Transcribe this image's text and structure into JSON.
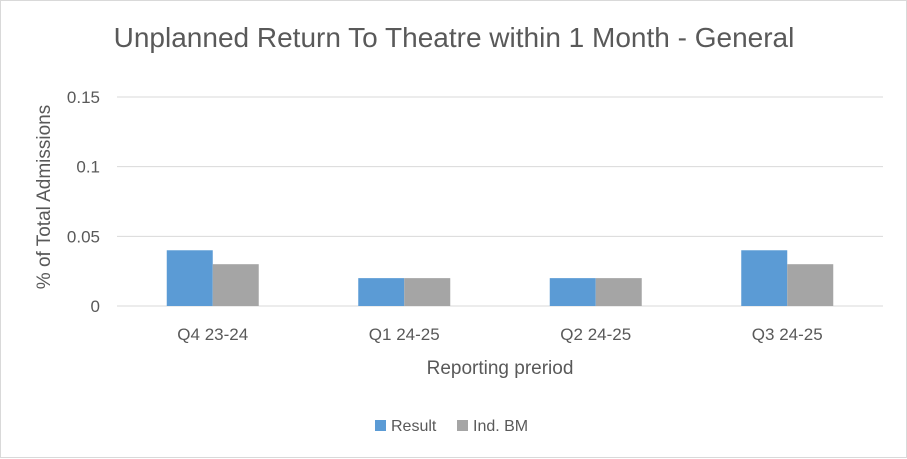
{
  "chart_data": {
    "type": "bar",
    "title": "Unplanned Return To Theatre within 1 Month - General",
    "xlabel": "Reporting preriod",
    "ylabel": "% of Total Admissions",
    "categories": [
      "Q4 23-24",
      "Q1 24-25",
      "Q2 24-25",
      "Q3 24-25"
    ],
    "series": [
      {
        "name": "Result",
        "color": "#5b9bd5",
        "values": [
          0.04,
          0.02,
          0.02,
          0.04
        ]
      },
      {
        "name": "Ind. BM",
        "color": "#a5a5a5",
        "values": [
          0.03,
          0.02,
          0.02,
          0.03
        ]
      }
    ],
    "ylim": [
      0,
      0.15
    ],
    "yticks": [
      "0",
      "0.05",
      "0.1",
      "0.15"
    ],
    "grid": true,
    "legend": "bottom"
  }
}
